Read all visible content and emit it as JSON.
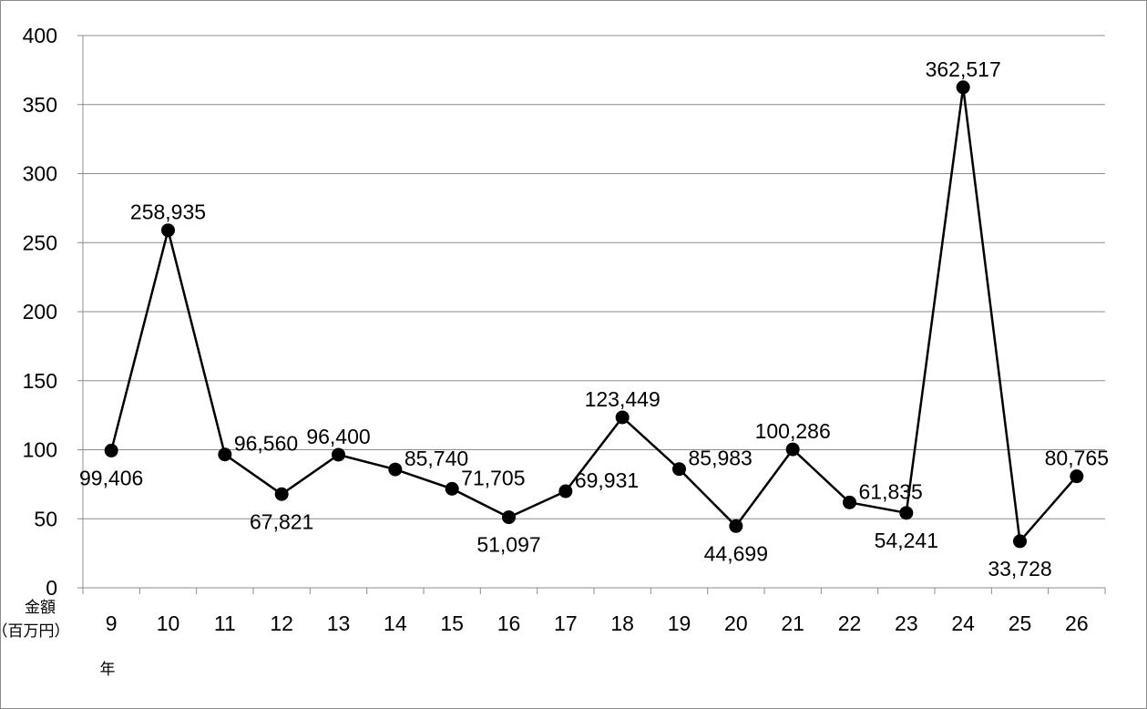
{
  "chart_data": {
    "type": "line",
    "title": "",
    "ylabel": "金額（百万円）",
    "ylabel_line1": "金額",
    "ylabel_line2": "（百万円）",
    "xlabel": "年",
    "ylim": [
      0,
      400
    ],
    "yticks": [
      "0",
      "50",
      "100",
      "150",
      "200",
      "250",
      "300",
      "350",
      "400"
    ],
    "grid": true,
    "legend": "none",
    "categories": [
      "9",
      "10",
      "11",
      "12",
      "13",
      "14",
      "15",
      "16",
      "17",
      "18",
      "19",
      "20",
      "21",
      "22",
      "23",
      "24",
      "25",
      "26"
    ],
    "series": [
      {
        "values": [
          99.406,
          258.935,
          96.56,
          67.821,
          96.4,
          85.74,
          71.705,
          51.097,
          69.931,
          123.449,
          85.983,
          44.699,
          100.286,
          61.835,
          54.241,
          362.517,
          33.728,
          80.765
        ],
        "data_labels": [
          "99,406",
          "258,935",
          "96,560",
          "67,821",
          "96,400",
          "85,740",
          "71,705",
          "51,097",
          "69,931",
          "123,449",
          "85,983",
          "44,699",
          "100,286",
          "61,835",
          "54,241",
          "362,517",
          "33,728",
          "80,765"
        ],
        "color": "#000000"
      }
    ]
  }
}
